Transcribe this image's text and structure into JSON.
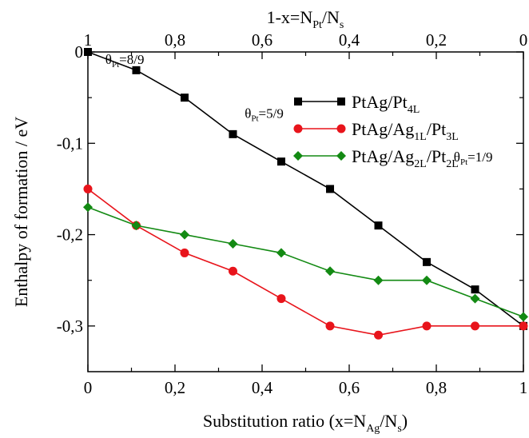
{
  "chart_data": {
    "type": "line",
    "x": [
      0,
      0.111,
      0.222,
      0.333,
      0.444,
      0.556,
      0.667,
      0.778,
      0.889,
      1.0
    ],
    "xlim": [
      0,
      1
    ],
    "ylim": [
      -0.35,
      0
    ],
    "grid": false,
    "legend_position": "top-right",
    "xlabel": {
      "main": "Substitution ratio (x=N",
      "sub1": "Ag",
      "mid": "/N",
      "sub2": "s",
      "end": ")"
    },
    "ylabel": "Enthalpy of formation / eV",
    "top_xlabel": {
      "main": "1-x=N",
      "sub1": "Pt",
      "mid": "/N",
      "sub2": "s"
    },
    "x_ticks": [
      {
        "value": 0,
        "label": "0"
      },
      {
        "value": 0.2,
        "label": "0,2"
      },
      {
        "value": 0.4,
        "label": "0,4"
      },
      {
        "value": 0.6,
        "label": "0,6"
      },
      {
        "value": 0.8,
        "label": "0,8"
      },
      {
        "value": 1,
        "label": "1"
      }
    ],
    "top_ticks": [
      {
        "value": 0,
        "label": "1"
      },
      {
        "value": 0.2,
        "label": "0,8"
      },
      {
        "value": 0.4,
        "label": "0,6"
      },
      {
        "value": 0.6,
        "label": "0,4"
      },
      {
        "value": 0.8,
        "label": "0,2"
      },
      {
        "value": 1,
        "label": "0"
      }
    ],
    "y_ticks": [
      {
        "value": 0,
        "label": "0"
      },
      {
        "value": -0.1,
        "label": "-0,1"
      },
      {
        "value": -0.2,
        "label": "-0,2"
      },
      {
        "value": -0.3,
        "label": "-0,3"
      }
    ],
    "series": [
      {
        "legend": {
          "main": "PtAg/Pt",
          "sub": "4L",
          "rest": "",
          "sub2": ""
        },
        "color": "#000000",
        "marker": "square",
        "values": [
          0,
          -0.02,
          -0.05,
          -0.09,
          -0.12,
          -0.15,
          -0.19,
          -0.23,
          -0.26,
          -0.3
        ]
      },
      {
        "legend": {
          "main": "PtAg/Ag",
          "sub": "1L",
          "rest": "/Pt",
          "sub2": "3L"
        },
        "color": "#e8141b",
        "marker": "circle",
        "values": [
          -0.15,
          -0.19,
          -0.22,
          -0.24,
          -0.27,
          -0.3,
          -0.31,
          -0.3,
          -0.3,
          -0.3
        ]
      },
      {
        "legend": {
          "main": "PtAg/Ag",
          "sub": "2L",
          "rest": "/Pt",
          "sub2": "2L"
        },
        "color": "#138a13",
        "marker": "diamond",
        "values": [
          -0.17,
          -0.19,
          -0.2,
          -0.21,
          -0.22,
          -0.24,
          -0.25,
          -0.25,
          -0.27,
          -0.29
        ]
      }
    ],
    "annotations": [
      {
        "main": "θ",
        "sub": "Pt",
        "rest": "=8/9",
        "x": 0.04,
        "y": -0.013
      },
      {
        "main": "θ",
        "sub": "Pt",
        "rest": "=5/9",
        "x": 0.36,
        "y": -0.072
      },
      {
        "main": "θ",
        "sub": "Pt",
        "rest": "=1/9",
        "x": 0.84,
        "y": -0.12
      }
    ]
  }
}
